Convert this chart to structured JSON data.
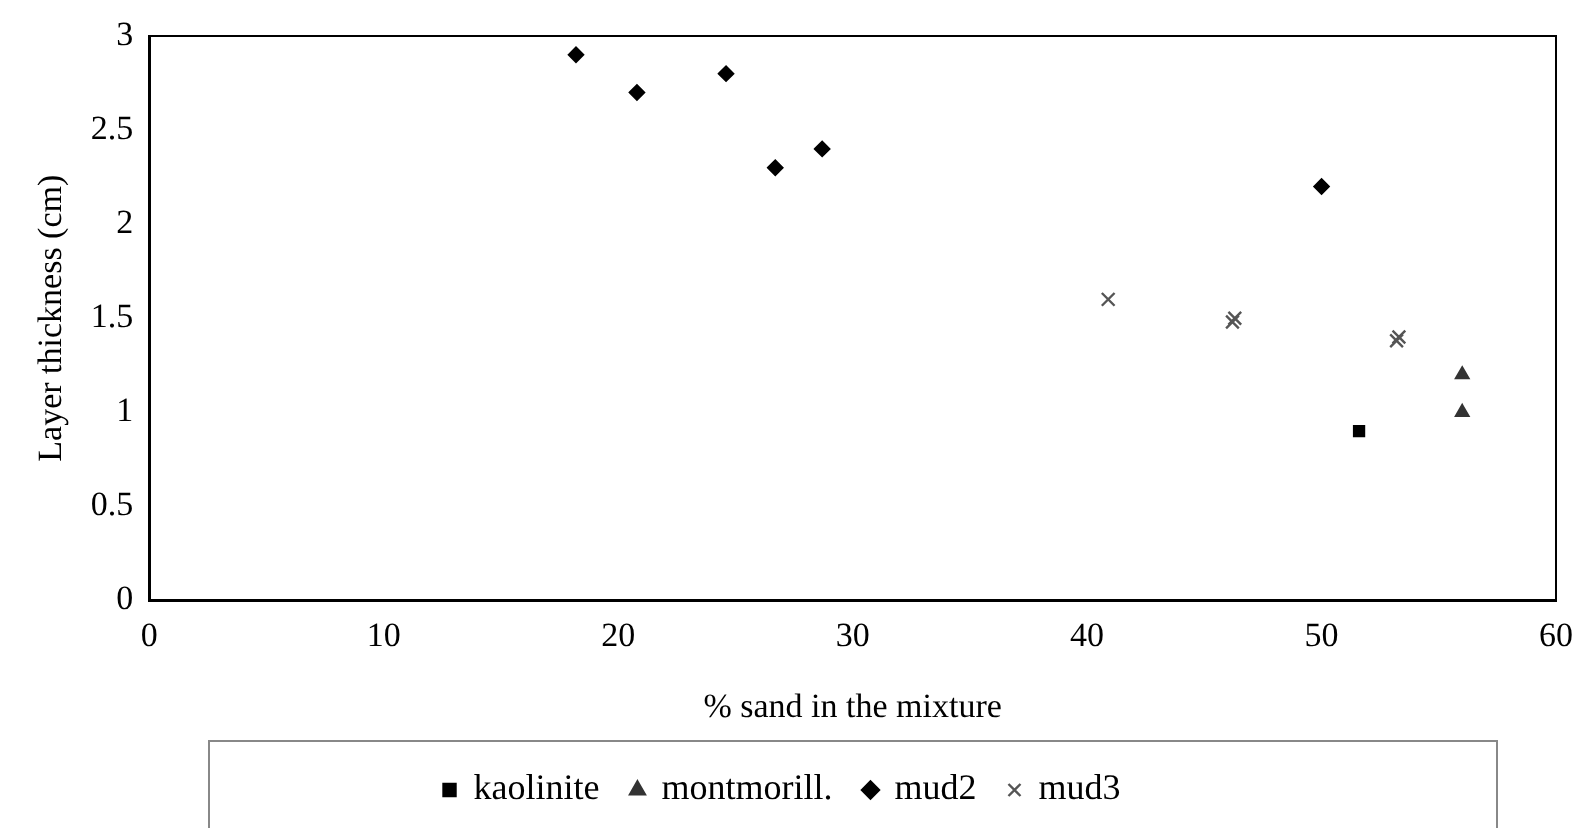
{
  "chart_data": {
    "type": "scatter",
    "xlabel": "% sand in the mixture",
    "ylabel": "Layer thickness (cm)",
    "xlim": [
      0,
      60
    ],
    "xticks": [
      0,
      10,
      20,
      30,
      40,
      50,
      60
    ],
    "ylim": [
      0,
      3
    ],
    "yticks": [
      0,
      0.5,
      1,
      1.5,
      2,
      2.5,
      3
    ],
    "grid": false,
    "legend": "bottom",
    "series": [
      {
        "name": "kaolinite",
        "color": "#000000",
        "marker": "square",
        "x": [
          51.6
        ],
        "values": [
          0.9
        ]
      },
      {
        "name": "montmorill.",
        "color": "#333333",
        "marker": "triangle",
        "x": [
          56,
          56
        ],
        "values": [
          1.2,
          1.0
        ]
      },
      {
        "name": "mud2",
        "color": "#000000",
        "marker": "diamond",
        "x": [
          18.2,
          20.8,
          24.6,
          26.7,
          28.7,
          50
        ],
        "values": [
          2.9,
          2.7,
          2.8,
          2.3,
          2.4,
          2.2
        ]
      },
      {
        "name": "mud3",
        "color": "#555555",
        "marker": "cross",
        "x": [
          40.9,
          46.3,
          46.2,
          53.3,
          53.2
        ],
        "values": [
          1.6,
          1.5,
          1.48,
          1.4,
          1.38
        ]
      }
    ]
  }
}
